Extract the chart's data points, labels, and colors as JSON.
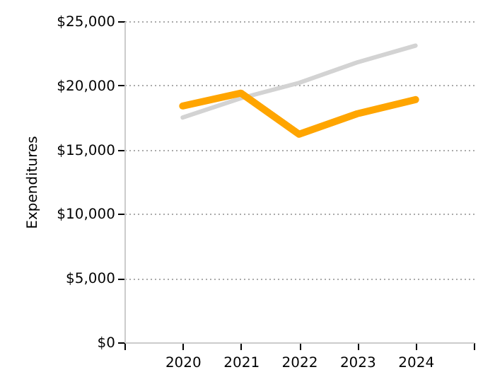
{
  "chart_data": {
    "type": "line",
    "ylabel": "Expenditures",
    "x": [
      2020,
      2021,
      2022,
      2023,
      2024
    ],
    "series": [
      {
        "color": "#d3d3d3",
        "values": [
          17500,
          19000,
          20200,
          21800,
          23100
        ]
      },
      {
        "color": "#ffa500",
        "values": [
          18400,
          19400,
          16200,
          17800,
          18900
        ]
      }
    ],
    "xlim": [
      2019,
      2025
    ],
    "xticks": [
      {
        "value": 2019,
        "label": null
      },
      {
        "value": 2020,
        "label": "2020"
      },
      {
        "value": 2021,
        "label": "2021"
      },
      {
        "value": 2022,
        "label": "2022"
      },
      {
        "value": 2023,
        "label": "2023"
      },
      {
        "value": 2024,
        "label": "2024"
      },
      {
        "value": 2025,
        "label": null
      }
    ],
    "ylim": [
      0,
      25000
    ],
    "yticks": [
      {
        "value": 0,
        "label": "$0"
      },
      {
        "value": 5000,
        "label": "$5,000"
      },
      {
        "value": 10000,
        "label": "$10,000"
      },
      {
        "value": 15000,
        "label": "$15,000"
      },
      {
        "value": 20000,
        "label": "$20,000"
      },
      {
        "value": 25000,
        "label": "$25,000"
      }
    ],
    "grid": "y",
    "marker": "none",
    "line_style": "solid"
  }
}
